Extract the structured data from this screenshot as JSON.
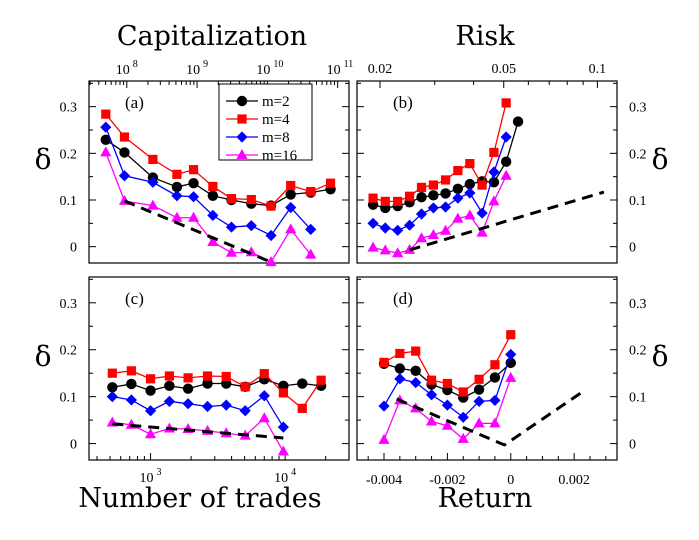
{
  "figure": {
    "top_left_title": "Capitalization",
    "top_right_title": "Risk",
    "bottom_left_xlabel": "Number of trades",
    "bottom_right_xlabel": "Return",
    "ylabel": "δ"
  },
  "legend": [
    {
      "label": "m=2",
      "color": "#000000",
      "marker": "circle"
    },
    {
      "label": "m=4",
      "color": "#ff0000",
      "marker": "square"
    },
    {
      "label": "m=8",
      "color": "#0000ff",
      "marker": "diamond"
    },
    {
      "label": "m=16",
      "color": "#ff00ff",
      "marker": "triangle"
    }
  ],
  "chart_data": [
    {
      "id": "a",
      "label": "(a)",
      "type": "line",
      "xscale": "log",
      "xlim": [
        131000000.0,
        2200000000.0
      ],
      "ylim": [
        -0.035,
        0.355
      ],
      "xlabel": "",
      "ylabel": "δ",
      "yticks": [
        0,
        0.1,
        0.2,
        0.3
      ],
      "ytick_labels": [
        "0",
        "0.1",
        "0.2",
        "0.3"
      ],
      "top_axis_title": "Capitalization",
      "top_xlim": [
        29000000.0,
        145000000000.0
      ],
      "top_ticks": [
        {
          "value": 100000000.0,
          "base": "10",
          "exp": "8"
        },
        {
          "value": 1000000000.0,
          "base": "10",
          "exp": "9"
        },
        {
          "value": 10000000000.0,
          "base": "10",
          "exp": "10"
        },
        {
          "value": 100000000000.0,
          "base": "10",
          "exp": "11"
        }
      ],
      "series": [
        {
          "name": "m=2",
          "x": [
            145000000.0,
            180000000.0,
            250000000.0,
            330000000.0,
            400000000.0,
            500000000.0,
            620000000.0,
            780000000.0,
            980000000.0,
            1230000000.0,
            1550000000.0,
            1950000000.0
          ],
          "y": [
            0.229,
            0.202,
            0.148,
            0.128,
            0.136,
            0.109,
            0.1,
            0.092,
            0.088,
            0.112,
            0.116,
            0.123
          ]
        },
        {
          "name": "m=4",
          "x": [
            145000000.0,
            180000000.0,
            250000000.0,
            330000000.0,
            400000000.0,
            500000000.0,
            620000000.0,
            780000000.0,
            980000000.0,
            1230000000.0,
            1550000000.0,
            1950000000.0
          ],
          "y": [
            0.284,
            0.235,
            0.187,
            0.155,
            0.165,
            0.129,
            0.103,
            0.101,
            0.087,
            0.131,
            0.118,
            0.136
          ]
        },
        {
          "name": "m=8",
          "x": [
            145000000.0,
            180000000.0,
            250000000.0,
            330000000.0,
            400000000.0,
            500000000.0,
            620000000.0,
            780000000.0,
            980000000.0,
            1230000000.0,
            1550000000.0
          ],
          "y": [
            0.256,
            0.152,
            0.138,
            0.109,
            0.107,
            0.067,
            0.042,
            0.045,
            0.024,
            0.084,
            0.037
          ]
        },
        {
          "name": "m=16",
          "x": [
            145000000.0,
            180000000.0,
            250000000.0,
            330000000.0,
            400000000.0,
            500000000.0,
            620000000.0,
            780000000.0,
            980000000.0,
            1230000000.0,
            1550000000.0
          ],
          "y": [
            0.202,
            0.098,
            0.088,
            0.062,
            0.062,
            0.01,
            -0.013,
            -0.012,
            -0.033,
            0.037,
            -0.017
          ]
        }
      ],
      "fit_line": {
        "x": [
          180000000.0,
          980000000.0
        ],
        "y": [
          0.098,
          -0.033
        ]
      }
    },
    {
      "id": "b",
      "label": "(b)",
      "type": "line",
      "xscale": "log",
      "xlim": [
        0.0179,
        0.109
      ],
      "ylim": [
        -0.035,
        0.355
      ],
      "xlabel": "",
      "ylabel": "δ",
      "yticks": [
        0,
        0.1,
        0.2,
        0.3
      ],
      "ytick_labels": [
        "0",
        "0.1",
        "0.2",
        "0.3"
      ],
      "top_axis_title": "Risk",
      "top_ticks": [
        {
          "value": 0.02,
          "label": "0.02"
        },
        {
          "value": 0.05,
          "label": "0.05"
        },
        {
          "value": 0.1,
          "label": "0.1"
        }
      ],
      "series": [
        {
          "name": "m=2",
          "x": [
            0.019,
            0.0208,
            0.0228,
            0.0249,
            0.0272,
            0.0297,
            0.0325,
            0.0356,
            0.0389,
            0.0426,
            0.0465,
            0.0509,
            0.0556,
            0.0608,
            0.0665,
            0.0727,
            0.0795,
            0.087,
            0.095,
            0.104
          ],
          "y": [
            0.09,
            0.083,
            0.087,
            0.095,
            0.106,
            0.11,
            0.114,
            0.124,
            0.134,
            0.14,
            0.138,
            0.182,
            0.268,
            null,
            null,
            null,
            null,
            null,
            null,
            null
          ]
        },
        {
          "name": "m=4",
          "x": [
            0.019,
            0.0208,
            0.0228,
            0.0249,
            0.0272,
            0.0297,
            0.0325,
            0.0356,
            0.0389,
            0.0426,
            0.0465,
            0.0509,
            0.0556
          ],
          "y": [
            0.104,
            0.097,
            0.097,
            0.108,
            0.127,
            0.132,
            0.143,
            0.163,
            0.178,
            0.132,
            0.202,
            0.308,
            null
          ]
        },
        {
          "name": "m=8",
          "x": [
            0.019,
            0.0208,
            0.0228,
            0.0249,
            0.0272,
            0.0297,
            0.0325,
            0.0356,
            0.0389,
            0.0426,
            0.0465,
            0.0509,
            0.0556
          ],
          "y": [
            0.05,
            0.04,
            0.035,
            0.046,
            0.07,
            0.083,
            0.085,
            0.104,
            0.115,
            0.072,
            0.16,
            0.235,
            null
          ]
        },
        {
          "name": "m=16",
          "x": [
            0.019,
            0.0208,
            0.0228,
            0.0249,
            0.0272,
            0.0297,
            0.0325,
            0.0356,
            0.0389,
            0.0426,
            0.0465,
            0.0509
          ],
          "y": [
            -0.002,
            -0.008,
            -0.014,
            -0.007,
            0.018,
            0.025,
            0.034,
            0.06,
            0.067,
            0.03,
            0.097,
            0.152
          ]
        }
      ],
      "fit_line": {
        "x": [
          0.0249,
          0.105
        ],
        "y": [
          -0.007,
          0.117
        ]
      }
    },
    {
      "id": "c",
      "label": "(c)",
      "type": "line",
      "xscale": "log",
      "xlim": [
        400,
        26000
      ],
      "ylim": [
        -0.035,
        0.355
      ],
      "xlabel": "Number of trades",
      "ylabel": "δ",
      "yticks": [
        0,
        0.1,
        0.2,
        0.3
      ],
      "ytick_labels": [
        "0",
        "0.1",
        "0.2",
        "0.3"
      ],
      "xticks": [
        {
          "value": 1000,
          "base": "10",
          "exp": "3"
        },
        {
          "value": 10000,
          "base": "10",
          "exp": "4"
        }
      ],
      "series": [
        {
          "name": "m=2",
          "x": [
            520,
            720,
            1000,
            1380,
            1900,
            2650,
            3650,
            5050,
            7000,
            9700,
            13400,
            18500
          ],
          "y": [
            0.12,
            0.127,
            0.113,
            0.123,
            0.117,
            0.128,
            0.128,
            0.121,
            0.137,
            0.123,
            0.128,
            0.123
          ]
        },
        {
          "name": "m=4",
          "x": [
            520,
            720,
            1000,
            1380,
            1900,
            2650,
            3650,
            5050,
            7000,
            9700,
            13400,
            18500
          ],
          "y": [
            0.15,
            0.155,
            0.138,
            0.144,
            0.14,
            0.144,
            0.143,
            0.121,
            0.149,
            0.108,
            0.075,
            0.135
          ]
        },
        {
          "name": "m=8",
          "x": [
            520,
            720,
            1000,
            1380,
            1900,
            2650,
            3650,
            5050,
            7000,
            9700
          ],
          "y": [
            0.1,
            0.093,
            0.07,
            0.09,
            0.085,
            0.079,
            0.082,
            0.07,
            0.102,
            0.035
          ]
        },
        {
          "name": "m=16",
          "x": [
            520,
            720,
            1000,
            1380,
            1900,
            2650,
            3650,
            5050,
            7000,
            9700
          ],
          "y": [
            0.045,
            0.04,
            0.02,
            0.032,
            0.031,
            0.027,
            0.022,
            0.017,
            0.054,
            -0.017
          ]
        }
      ],
      "fit_line": {
        "x": [
          520,
          9700
        ],
        "y": [
          0.042,
          0.012
        ]
      }
    },
    {
      "id": "d",
      "label": "(d)",
      "type": "line",
      "xscale": "linear",
      "xlim": [
        -0.0046,
        0.0031
      ],
      "ylim": [
        -0.035,
        0.355
      ],
      "xlabel": "Return",
      "ylabel": "δ",
      "yticks": [
        0,
        0.1,
        0.2,
        0.3
      ],
      "ytick_labels": [
        "0",
        "0.1",
        "0.2",
        "0.3"
      ],
      "xticks": [
        -0.004,
        -0.002,
        0,
        0.002
      ],
      "xtick_labels": [
        "-0.004",
        "-0.002",
        "0",
        "0.002"
      ],
      "series": [
        {
          "name": "m=2",
          "x": [
            -0.004,
            -0.0035,
            -0.003,
            -0.0025,
            -0.002,
            -0.0015,
            -0.001,
            -0.0005,
            0.0,
            0.0005,
            0.001,
            0.0015,
            0.002,
            0.0025
          ],
          "y": [
            0.17,
            0.16,
            0.155,
            0.126,
            0.114,
            0.098,
            0.115,
            0.141,
            0.172,
            null,
            null,
            null,
            null,
            null
          ]
        },
        {
          "name": "m=4",
          "x": [
            -0.004,
            -0.0035,
            -0.003,
            -0.0025,
            -0.002,
            -0.0015,
            -0.001,
            -0.0005,
            0.0,
            0.0005
          ],
          "y": [
            0.173,
            0.192,
            0.197,
            0.135,
            0.128,
            0.11,
            0.137,
            0.168,
            0.232,
            null
          ]
        },
        {
          "name": "m=8",
          "x": [
            -0.004,
            -0.0035,
            -0.003,
            -0.0025,
            -0.002,
            -0.0015,
            -0.001,
            -0.0005,
            0.0
          ],
          "y": [
            0.08,
            0.138,
            0.13,
            0.104,
            0.082,
            0.056,
            0.09,
            0.092,
            0.19
          ]
        },
        {
          "name": "m=16",
          "x": [
            -0.004,
            -0.0035,
            -0.003,
            -0.0025,
            -0.002,
            -0.0015,
            -0.001,
            -0.0005,
            0.0
          ],
          "y": [
            0.008,
            0.092,
            0.075,
            0.047,
            0.038,
            0.01,
            0.043,
            0.043,
            0.14
          ]
        }
      ],
      "fit_line": {
        "x": [
          -0.0036,
          -0.0002,
          0.0023
        ],
        "y": [
          0.095,
          -0.003,
          0.112
        ]
      }
    }
  ]
}
